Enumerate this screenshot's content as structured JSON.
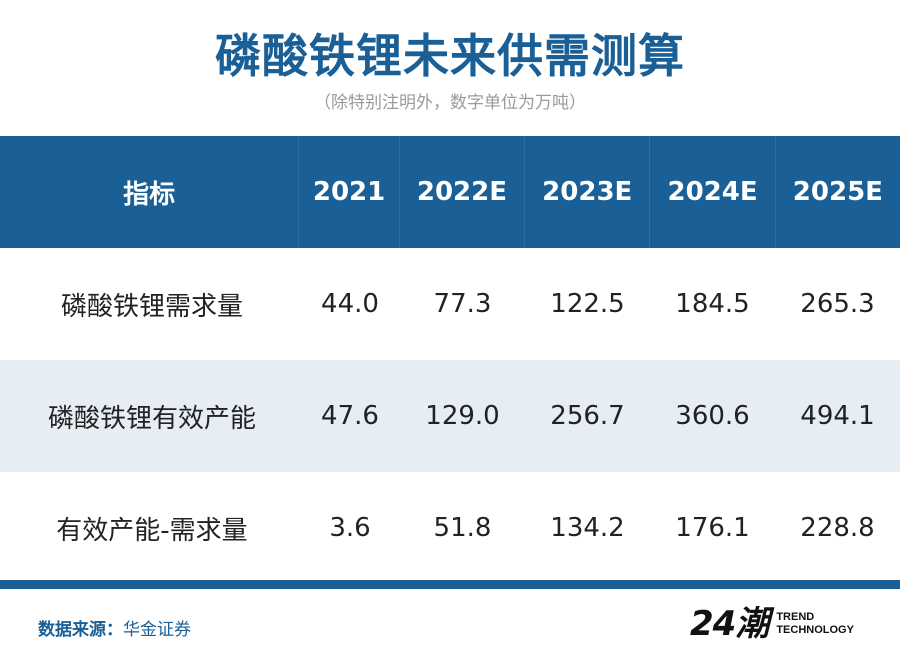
{
  "title": "磷酸铁锂未来供需测算",
  "subtitle": "（除特别注明外，数字单位为万吨）",
  "table": {
    "headers": [
      "指标",
      "2021",
      "2022E",
      "2023E",
      "2024E",
      "2025E"
    ],
    "rows": [
      [
        "磷酸铁锂需求量",
        "44.0",
        "77.3",
        "122.5",
        "184.5",
        "265.3"
      ],
      [
        "磷酸铁锂有效产能",
        "47.6",
        "129.0",
        "256.7",
        "360.6",
        "494.1"
      ],
      [
        "有效产能-需求量",
        "3.6",
        "51.8",
        "134.2",
        "176.1",
        "228.8"
      ]
    ]
  },
  "footer": {
    "source_label": "数据来源：",
    "source_value": "华金证券"
  },
  "logo": {
    "mark": "24潮",
    "line1": "TREND",
    "line2": "TECHNOLOGY"
  },
  "colors": {
    "accent": "#1a5f96",
    "row_shade": "#e6edf4",
    "subtitle": "#9a9a9a"
  }
}
